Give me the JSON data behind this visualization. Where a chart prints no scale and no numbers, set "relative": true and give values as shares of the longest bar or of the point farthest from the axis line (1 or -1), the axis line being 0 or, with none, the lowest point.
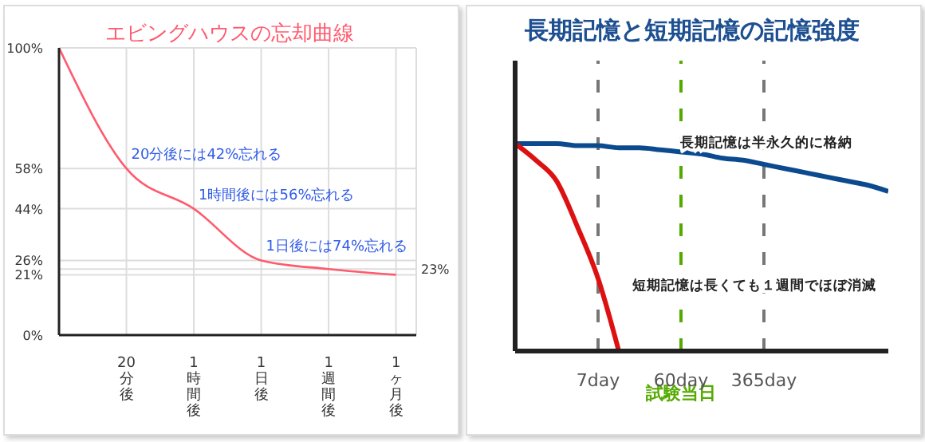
{
  "chart_data": [
    {
      "type": "line",
      "title": "エビングハウスの忘却曲線",
      "categories": [
        null,
        "20分後",
        "1時間後",
        "1日後",
        "1週間後",
        "1ヶ月後"
      ],
      "values": [
        100,
        58,
        44,
        26,
        23,
        21
      ],
      "color": "#ff5a6e",
      "ylim": [
        0,
        100
      ],
      "yticks": [
        {
          "value": 0,
          "label": "0%"
        },
        {
          "value": 21,
          "label": "21%"
        },
        {
          "value": 26,
          "label": "26%"
        },
        {
          "value": 44,
          "label": "44%"
        },
        {
          "value": 58,
          "label": "58%"
        },
        {
          "value": 100,
          "label": "100%"
        }
      ],
      "ref_lines": [
        {
          "axis": "y",
          "value": 23,
          "label": "23%",
          "color": "#dddddd"
        }
      ],
      "grid": true,
      "marker": "none",
      "annotations": [
        {
          "text": "20分後には42%忘れる",
          "x": "20分後",
          "y": 58
        },
        {
          "text": "1時間後には56%忘れる",
          "x": "1時間後",
          "y": 44
        },
        {
          "text": "1日後には74%忘れる",
          "x": "1日後",
          "y": 26
        }
      ]
    },
    {
      "type": "line",
      "title": "長期記憶と短期記憶の記憶強度",
      "relative": true,
      "categories": [
        null,
        null,
        null,
        null,
        "7day",
        null,
        null,
        null,
        "60day",
        null,
        null,
        null,
        "365day",
        null,
        null,
        null,
        null,
        null,
        null
      ],
      "marker": "none",
      "series": [
        {
          "color": "#0b4a8f",
          "values": [
            1,
            1,
            1,
            0.99,
            0.99,
            0.98,
            0.98,
            0.97,
            0.96,
            0.95,
            0.93,
            0.92,
            0.9,
            0.88,
            0.86,
            0.84,
            0.82,
            0.8,
            0.77
          ]
        },
        {
          "color": "#dd1111",
          "values": [
            1,
            0.92,
            0.82,
            0.6,
            0.35,
            0,
            null,
            null,
            null,
            null,
            null,
            null,
            null,
            null,
            null,
            null,
            null,
            null,
            null
          ]
        }
      ],
      "ref_lines": [
        {
          "axis": "x",
          "value": "7day",
          "color": "#777777",
          "line_style": "dashed"
        },
        {
          "axis": "x",
          "value": "60day",
          "label": "試験当日",
          "color": "#55aa00",
          "line_style": "dashed"
        },
        {
          "axis": "x",
          "value": "365day",
          "color": "#777777",
          "line_style": "dashed"
        }
      ],
      "annotations": [
        "長期記憶は半永久的に格納",
        "短期記憶は長くても１週間でほぼ消滅"
      ]
    }
  ]
}
